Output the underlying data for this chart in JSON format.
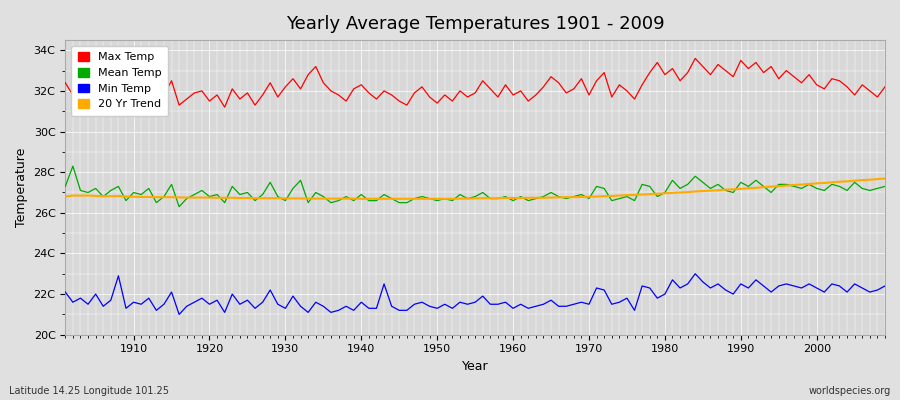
{
  "title": "Yearly Average Temperatures 1901 - 2009",
  "xlabel": "Year",
  "ylabel": "Temperature",
  "bottom_left": "Latitude 14.25 Longitude 101.25",
  "bottom_right": "worldspecies.org",
  "ylim": [
    20,
    34.5
  ],
  "yticks": [
    20,
    22,
    24,
    26,
    28,
    30,
    32,
    34
  ],
  "ytick_labels": [
    "20C",
    "22C",
    "24C",
    "26C",
    "28C",
    "30C",
    "32C",
    "34C"
  ],
  "xlim": [
    1901,
    2009
  ],
  "xticks": [
    1910,
    1920,
    1930,
    1940,
    1950,
    1960,
    1970,
    1980,
    1990,
    2000
  ],
  "bg_color": "#e8e8e8",
  "plot_bg_color": "#dcdcdc",
  "grid_color": "#ffffff",
  "legend_labels": [
    "Max Temp",
    "Mean Temp",
    "Min Temp",
    "20 Yr Trend"
  ],
  "legend_colors": [
    "#ff0000",
    "#00aa00",
    "#0000ff",
    "#ffaa00"
  ],
  "max_temp": [
    32.4,
    31.8,
    32.1,
    31.9,
    32.7,
    31.6,
    32.3,
    32.9,
    31.5,
    32.2,
    31.7,
    32.0,
    31.4,
    31.8,
    32.5,
    31.3,
    31.6,
    31.9,
    32.0,
    31.5,
    31.8,
    31.2,
    32.1,
    31.6,
    31.9,
    31.3,
    31.8,
    32.4,
    31.7,
    32.2,
    32.6,
    32.1,
    32.8,
    33.2,
    32.4,
    32.0,
    31.8,
    31.5,
    32.1,
    32.3,
    31.9,
    31.6,
    32.0,
    31.8,
    31.5,
    31.3,
    31.9,
    32.2,
    31.7,
    31.4,
    31.8,
    31.5,
    32.0,
    31.7,
    31.9,
    32.5,
    32.1,
    31.7,
    32.3,
    31.8,
    32.0,
    31.5,
    31.8,
    32.2,
    32.7,
    32.4,
    31.9,
    32.1,
    32.6,
    31.8,
    32.5,
    32.9,
    31.7,
    32.3,
    32.0,
    31.6,
    32.3,
    32.9,
    33.4,
    32.8,
    33.1,
    32.5,
    32.9,
    33.6,
    33.2,
    32.8,
    33.3,
    33.0,
    32.7,
    33.5,
    33.1,
    33.4,
    32.9,
    33.2,
    32.6,
    33.0,
    32.7,
    32.4,
    32.8,
    32.3,
    32.1,
    32.6,
    32.5,
    32.2,
    31.8,
    32.3,
    32.0,
    31.7,
    32.2
  ],
  "mean_temp": [
    27.3,
    28.3,
    27.1,
    27.0,
    27.2,
    26.8,
    27.1,
    27.3,
    26.6,
    27.0,
    26.9,
    27.2,
    26.5,
    26.8,
    27.4,
    26.3,
    26.7,
    26.9,
    27.1,
    26.8,
    26.9,
    26.5,
    27.3,
    26.9,
    27.0,
    26.6,
    26.9,
    27.5,
    26.8,
    26.6,
    27.2,
    27.6,
    26.5,
    27.0,
    26.8,
    26.5,
    26.6,
    26.8,
    26.6,
    26.9,
    26.6,
    26.6,
    26.9,
    26.7,
    26.5,
    26.5,
    26.7,
    26.8,
    26.7,
    26.6,
    26.7,
    26.6,
    26.9,
    26.7,
    26.8,
    27.0,
    26.7,
    26.7,
    26.8,
    26.6,
    26.8,
    26.6,
    26.7,
    26.8,
    27.0,
    26.8,
    26.7,
    26.8,
    26.9,
    26.7,
    27.3,
    27.2,
    26.6,
    26.7,
    26.8,
    26.6,
    27.4,
    27.3,
    26.8,
    27.0,
    27.6,
    27.2,
    27.4,
    27.8,
    27.5,
    27.2,
    27.4,
    27.1,
    27.0,
    27.5,
    27.3,
    27.6,
    27.3,
    27.0,
    27.4,
    27.4,
    27.3,
    27.2,
    27.4,
    27.2,
    27.1,
    27.4,
    27.3,
    27.1,
    27.5,
    27.2,
    27.1,
    27.2,
    27.3
  ],
  "min_temp": [
    22.1,
    21.6,
    21.8,
    21.5,
    22.0,
    21.4,
    21.7,
    22.9,
    21.3,
    21.6,
    21.5,
    21.8,
    21.2,
    21.5,
    22.1,
    21.0,
    21.4,
    21.6,
    21.8,
    21.5,
    21.7,
    21.1,
    22.0,
    21.5,
    21.7,
    21.3,
    21.6,
    22.2,
    21.5,
    21.3,
    21.9,
    21.4,
    21.1,
    21.6,
    21.4,
    21.1,
    21.2,
    21.4,
    21.2,
    21.6,
    21.3,
    21.3,
    22.5,
    21.4,
    21.2,
    21.2,
    21.5,
    21.6,
    21.4,
    21.3,
    21.5,
    21.3,
    21.6,
    21.5,
    21.6,
    21.9,
    21.5,
    21.5,
    21.6,
    21.3,
    21.5,
    21.3,
    21.4,
    21.5,
    21.7,
    21.4,
    21.4,
    21.5,
    21.6,
    21.5,
    22.3,
    22.2,
    21.5,
    21.6,
    21.8,
    21.2,
    22.4,
    22.3,
    21.8,
    22.0,
    22.7,
    22.3,
    22.5,
    23.0,
    22.6,
    22.3,
    22.5,
    22.2,
    22.0,
    22.5,
    22.3,
    22.7,
    22.4,
    22.1,
    22.4,
    22.5,
    22.4,
    22.3,
    22.5,
    22.3,
    22.1,
    22.5,
    22.4,
    22.1,
    22.5,
    22.3,
    22.1,
    22.2,
    22.4
  ],
  "trend": [
    26.8,
    26.85,
    26.85,
    26.85,
    26.83,
    26.82,
    26.82,
    26.83,
    26.8,
    26.79,
    26.78,
    26.78,
    26.77,
    26.77,
    26.77,
    26.76,
    26.75,
    26.75,
    26.75,
    26.75,
    26.74,
    26.74,
    26.74,
    26.73,
    26.73,
    26.72,
    26.72,
    26.72,
    26.72,
    26.71,
    26.71,
    26.71,
    26.7,
    26.7,
    26.7,
    26.7,
    26.7,
    26.7,
    26.7,
    26.69,
    26.69,
    26.69,
    26.69,
    26.69,
    26.69,
    26.69,
    26.69,
    26.69,
    26.69,
    26.69,
    26.69,
    26.69,
    26.7,
    26.7,
    26.71,
    26.72,
    26.72,
    26.72,
    26.73,
    26.73,
    26.73,
    26.74,
    26.74,
    26.74,
    26.75,
    26.76,
    26.77,
    26.77,
    26.78,
    26.79,
    26.8,
    26.82,
    26.83,
    26.85,
    26.87,
    26.88,
    26.9,
    26.92,
    26.94,
    26.96,
    26.98,
    27.0,
    27.02,
    27.05,
    27.07,
    27.09,
    27.11,
    27.14,
    27.16,
    27.18,
    27.21,
    27.23,
    27.26,
    27.29,
    27.31,
    27.34,
    27.37,
    27.39,
    27.42,
    27.45,
    27.47,
    27.5,
    27.53,
    27.55,
    27.58,
    27.61,
    27.63,
    27.66,
    27.69
  ]
}
